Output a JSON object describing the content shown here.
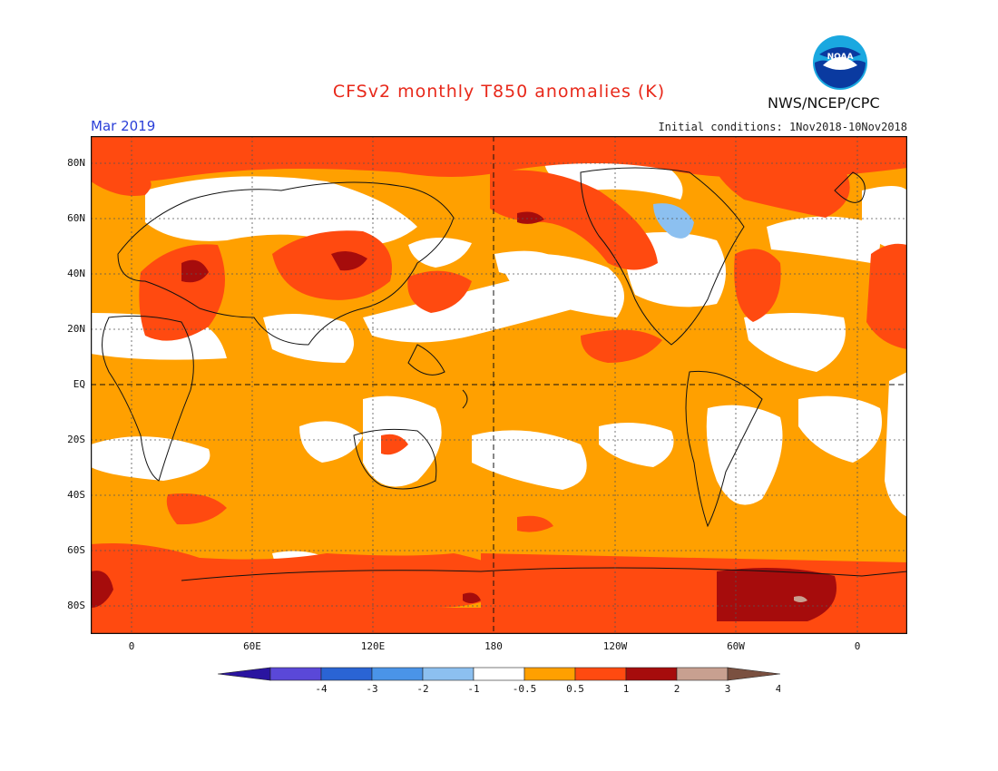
{
  "header": {
    "title": "CFSv2 monthly T850 anomalies (K)",
    "date": "Mar 2019",
    "initial_conditions": "Initial conditions: 1Nov2018-10Nov2018",
    "agency": "NWS/NCEP/CPC",
    "logo_text": "NOAA"
  },
  "axes": {
    "lat_labels": [
      "80N",
      "60N",
      "40N",
      "20N",
      "EQ",
      "20S",
      "40S",
      "60S",
      "80S"
    ],
    "lon_labels": [
      "0",
      "60E",
      "120E",
      "180",
      "120W",
      "60W",
      "0"
    ]
  },
  "colorbar": {
    "tick_labels": [
      "-4",
      "-3",
      "-2",
      "-1",
      "-0.5",
      "0.5",
      "1",
      "2",
      "3",
      "4"
    ],
    "colors": [
      "#2a14a0",
      "#5a48d8",
      "#2a64d4",
      "#4a94e8",
      "#8cc0f0",
      "#ffffff",
      "#ffa000",
      "#ff4a10",
      "#a60c0c",
      "#c8a090",
      "#7a5040"
    ]
  },
  "map_colors": {
    "background": "#ffa000",
    "neutral": "#ffffff",
    "warm": "#ff4a10",
    "hot": "#a60c0c",
    "cool": "#8cc0f0"
  }
}
